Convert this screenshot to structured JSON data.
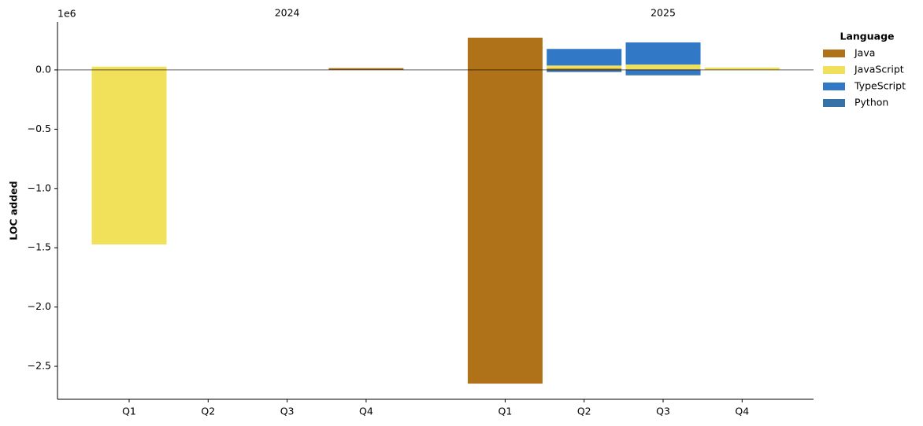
{
  "chart_data": {
    "type": "diverging-stacked-bar",
    "y_label": "LOC added",
    "y_offset_label": "1e6",
    "groups": [
      "2024",
      "2025"
    ],
    "categories": [
      "Q1",
      "Q2",
      "Q3",
      "Q4",
      "Q1",
      "Q2",
      "Q3",
      "Q4"
    ],
    "legend_title": "Language",
    "legend_position": "upper right outside",
    "series": [
      {
        "name": "Java",
        "color": "#b07219",
        "values": [
          null,
          null,
          null,
          15000,
          272000,
          12000,
          5000,
          null
        ],
        "negative_values": [
          null,
          null,
          null,
          null,
          -2646000,
          null,
          null,
          null
        ]
      },
      {
        "name": "JavaScript",
        "color": "#f1e05a",
        "values": [
          27000,
          null,
          null,
          null,
          null,
          25000,
          40000,
          20000
        ],
        "negative_values": [
          -1472000,
          null,
          null,
          null,
          null,
          null,
          null,
          null
        ]
      },
      {
        "name": "TypeScript",
        "color": "#3178c6",
        "values": [
          null,
          null,
          null,
          null,
          null,
          140000,
          187000,
          null
        ],
        "negative_values": [
          null,
          null,
          null,
          null,
          null,
          -10000,
          -36000,
          null
        ]
      },
      {
        "name": "Python",
        "color": "#3572a5",
        "values": [
          null,
          null,
          null,
          null,
          null,
          null,
          null,
          null
        ],
        "negative_values": [
          null,
          null,
          null,
          null,
          null,
          -8000,
          -10000,
          null
        ]
      }
    ],
    "ylim": [
      -2778000,
      404000
    ],
    "yticks": [
      {
        "value": 0,
        "label": "0.0"
      },
      {
        "value": -500000,
        "label": "−0.5"
      },
      {
        "value": -1000000,
        "label": "−1.0"
      },
      {
        "value": -1500000,
        "label": "−1.5"
      },
      {
        "value": -2000000,
        "label": "−2.0"
      },
      {
        "value": -2500000,
        "label": "−2.5"
      }
    ],
    "grid": false
  }
}
